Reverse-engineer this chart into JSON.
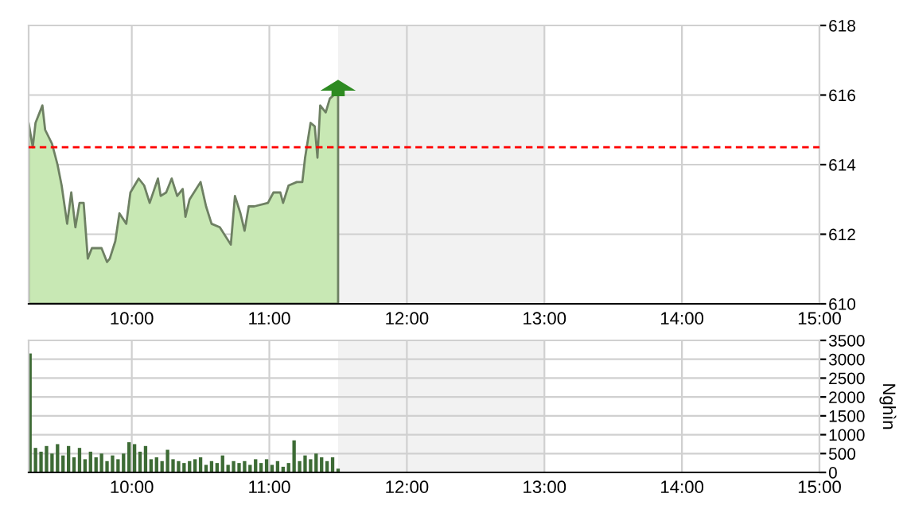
{
  "chart_data": [
    {
      "type": "area",
      "x": [
        9.25,
        9.28,
        9.3,
        9.35,
        9.37,
        9.42,
        9.46,
        9.49,
        9.53,
        9.56,
        9.59,
        9.62,
        9.65,
        9.68,
        9.71,
        9.78,
        9.82,
        9.84,
        9.88,
        9.91,
        9.96,
        9.99,
        10.05,
        10.09,
        10.13,
        10.19,
        10.21,
        10.25,
        10.29,
        10.33,
        10.37,
        10.39,
        10.42,
        10.5,
        10.54,
        10.58,
        10.64,
        10.72,
        10.75,
        10.79,
        10.82,
        10.85,
        10.89,
        10.99,
        11.03,
        11.08,
        11.1,
        11.14,
        11.2,
        11.24,
        11.26,
        11.3,
        11.33,
        11.35,
        11.37,
        11.41,
        11.44,
        11.47,
        11.5
      ],
      "series": [
        {
          "color": "#c8e8b4",
          "values": [
            615.2,
            614.5,
            615.2,
            615.7,
            615.0,
            614.6,
            614.0,
            613.4,
            612.3,
            613.2,
            612.2,
            612.9,
            612.9,
            611.3,
            611.6,
            611.6,
            611.2,
            611.3,
            611.8,
            612.6,
            612.3,
            613.2,
            613.6,
            613.4,
            612.9,
            613.6,
            613.1,
            613.2,
            613.6,
            613.1,
            613.3,
            612.5,
            613.0,
            613.5,
            612.8,
            612.3,
            612.2,
            611.7,
            613.1,
            612.6,
            612.1,
            612.8,
            612.8,
            612.9,
            613.2,
            613.2,
            612.9,
            613.4,
            613.5,
            613.5,
            614.2,
            615.2,
            615.1,
            614.2,
            615.7,
            615.5,
            615.9,
            616.0,
            616.0
          ]
        }
      ],
      "xlim": [
        9.25,
        15
      ],
      "ylim": [
        610,
        618
      ],
      "yticks": [
        610,
        612,
        614,
        616,
        618
      ],
      "xticks": [
        {
          "value": 10,
          "label": "10:00"
        },
        {
          "value": 11,
          "label": "11:00"
        },
        {
          "value": 12,
          "label": "12:00"
        },
        {
          "value": 13,
          "label": "13:00"
        },
        {
          "value": 14,
          "label": "14:00"
        },
        {
          "value": 15,
          "label": "15:00"
        }
      ],
      "ref_lines": [
        {
          "axis": "y",
          "value": 614.5,
          "color": "#ff0000",
          "line_style": "dashed"
        }
      ],
      "bands": [
        {
          "axis": "x",
          "from": 11.5,
          "to": 13,
          "color": "#f2f2f2"
        }
      ],
      "grid": true
    },
    {
      "type": "bar",
      "x": [
        9.26,
        9.3,
        9.34,
        9.38,
        9.42,
        9.46,
        9.5,
        9.54,
        9.58,
        9.62,
        9.66,
        9.7,
        9.74,
        9.78,
        9.82,
        9.86,
        9.9,
        9.94,
        9.98,
        10.02,
        10.06,
        10.1,
        10.14,
        10.18,
        10.22,
        10.26,
        10.3,
        10.34,
        10.38,
        10.42,
        10.46,
        10.5,
        10.54,
        10.58,
        10.62,
        10.66,
        10.7,
        10.74,
        10.78,
        10.82,
        10.86,
        10.9,
        10.94,
        10.98,
        11.02,
        11.06,
        11.1,
        11.14,
        11.18,
        11.22,
        11.26,
        11.3,
        11.34,
        11.38,
        11.42,
        11.46,
        11.5
      ],
      "series": [
        {
          "color": "#3d6b35",
          "values": [
            3150,
            650,
            550,
            700,
            500,
            750,
            450,
            700,
            400,
            650,
            350,
            550,
            400,
            500,
            300,
            450,
            350,
            500,
            800,
            750,
            550,
            700,
            350,
            400,
            300,
            600,
            350,
            300,
            250,
            300,
            350,
            400,
            200,
            300,
            250,
            450,
            200,
            300,
            250,
            300,
            200,
            350,
            250,
            350,
            200,
            300,
            150,
            250,
            850,
            300,
            450,
            350,
            500,
            400,
            300,
            400,
            100
          ]
        }
      ],
      "ylabel": "Nghìn",
      "xlim": [
        9.25,
        15
      ],
      "ylim": [
        0,
        3500
      ],
      "yticks": [
        0,
        500,
        1000,
        1500,
        2000,
        2500,
        3000,
        3500
      ],
      "xticks": [
        {
          "value": 10,
          "label": "10:00"
        },
        {
          "value": 11,
          "label": "11:00"
        },
        {
          "value": 12,
          "label": "12:00"
        },
        {
          "value": 13,
          "label": "13:00"
        },
        {
          "value": 14,
          "label": "14:00"
        },
        {
          "value": 15,
          "label": "15:00"
        }
      ],
      "bands": [
        {
          "axis": "x",
          "from": 11.5,
          "to": 13,
          "color": "#f2f2f2"
        }
      ],
      "grid": true
    }
  ]
}
